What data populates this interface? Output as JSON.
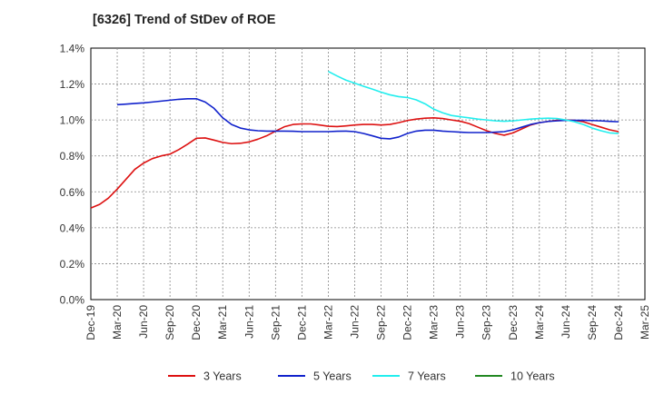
{
  "chart_data": {
    "type": "line",
    "title": "[6326]  Trend of StDev of ROE",
    "ylim": [
      0,
      1.4
    ],
    "y_ticks": [
      "0.0%",
      "0.2%",
      "0.4%",
      "0.6%",
      "0.8%",
      "1.0%",
      "1.2%",
      "1.4%"
    ],
    "x_ticks": [
      "Dec-19",
      "Mar-20",
      "Jun-20",
      "Sep-20",
      "Dec-20",
      "Mar-21",
      "Jun-21",
      "Sep-21",
      "Dec-21",
      "Mar-22",
      "Jun-22",
      "Sep-22",
      "Dec-22",
      "Mar-23",
      "Jun-23",
      "Sep-23",
      "Dec-23",
      "Mar-24",
      "Jun-24",
      "Sep-24",
      "Dec-24",
      "Mar-25"
    ],
    "grid": true,
    "legend_position": "bottom",
    "series": [
      {
        "name": "3 Years",
        "color": "#dd1111",
        "points": [
          [
            "Dec-19",
            0.51
          ],
          [
            "Jan-20",
            0.53
          ],
          [
            "Feb-20",
            0.565
          ],
          [
            "Mar-20",
            0.615
          ],
          [
            "Apr-20",
            0.67
          ],
          [
            "May-20",
            0.725
          ],
          [
            "Jun-20",
            0.76
          ],
          [
            "Jul-20",
            0.785
          ],
          [
            "Aug-20",
            0.8
          ],
          [
            "Sep-20",
            0.81
          ],
          [
            "Oct-20",
            0.835
          ],
          [
            "Nov-20",
            0.865
          ],
          [
            "Dec-20",
            0.898
          ],
          [
            "Jan-21",
            0.9
          ],
          [
            "Feb-21",
            0.888
          ],
          [
            "Mar-21",
            0.875
          ],
          [
            "Apr-21",
            0.868
          ],
          [
            "May-21",
            0.87
          ],
          [
            "Jun-21",
            0.878
          ],
          [
            "Jul-21",
            0.893
          ],
          [
            "Aug-21",
            0.912
          ],
          [
            "Sep-21",
            0.938
          ],
          [
            "Oct-21",
            0.962
          ],
          [
            "Nov-21",
            0.975
          ],
          [
            "Dec-21",
            0.978
          ],
          [
            "Jan-22",
            0.978
          ],
          [
            "Feb-22",
            0.972
          ],
          [
            "Mar-22",
            0.965
          ],
          [
            "Apr-22",
            0.963
          ],
          [
            "May-22",
            0.967
          ],
          [
            "Jun-22",
            0.972
          ],
          [
            "Jul-22",
            0.975
          ],
          [
            "Aug-22",
            0.975
          ],
          [
            "Sep-22",
            0.972
          ],
          [
            "Oct-22",
            0.975
          ],
          [
            "Nov-22",
            0.985
          ],
          [
            "Dec-22",
            0.997
          ],
          [
            "Jan-23",
            1.005
          ],
          [
            "Feb-23",
            1.01
          ],
          [
            "Mar-23",
            1.012
          ],
          [
            "Apr-23",
            1.008
          ],
          [
            "May-23",
            1.0
          ],
          [
            "Jun-23",
            0.993
          ],
          [
            "Jul-23",
            0.98
          ],
          [
            "Aug-23",
            0.96
          ],
          [
            "Sep-23",
            0.94
          ],
          [
            "Oct-23",
            0.925
          ],
          [
            "Nov-23",
            0.915
          ],
          [
            "Dec-23",
            0.928
          ],
          [
            "Jan-24",
            0.95
          ],
          [
            "Feb-24",
            0.972
          ],
          [
            "Mar-24",
            0.985
          ],
          [
            "Apr-24",
            0.992
          ],
          [
            "May-24",
            0.998
          ],
          [
            "Jun-24",
            1.0
          ],
          [
            "Jul-24",
            0.998
          ],
          [
            "Aug-24",
            0.99
          ],
          [
            "Sep-24",
            0.975
          ],
          [
            "Oct-24",
            0.96
          ],
          [
            "Nov-24",
            0.945
          ],
          [
            "Dec-24",
            0.935
          ]
        ]
      },
      {
        "name": "5 Years",
        "color": "#1122cc",
        "points": [
          [
            "Mar-20",
            1.085
          ],
          [
            "Apr-20",
            1.088
          ],
          [
            "May-20",
            1.092
          ],
          [
            "Jun-20",
            1.095
          ],
          [
            "Jul-20",
            1.1
          ],
          [
            "Aug-20",
            1.105
          ],
          [
            "Sep-20",
            1.11
          ],
          [
            "Oct-20",
            1.115
          ],
          [
            "Nov-20",
            1.118
          ],
          [
            "Dec-20",
            1.118
          ],
          [
            "Jan-21",
            1.1
          ],
          [
            "Feb-21",
            1.065
          ],
          [
            "Mar-21",
            1.012
          ],
          [
            "Apr-21",
            0.975
          ],
          [
            "May-21",
            0.955
          ],
          [
            "Jun-21",
            0.945
          ],
          [
            "Jul-21",
            0.94
          ],
          [
            "Aug-21",
            0.938
          ],
          [
            "Sep-21",
            0.938
          ],
          [
            "Oct-21",
            0.938
          ],
          [
            "Nov-21",
            0.937
          ],
          [
            "Dec-21",
            0.935
          ],
          [
            "Jan-22",
            0.935
          ],
          [
            "Feb-22",
            0.935
          ],
          [
            "Mar-22",
            0.935
          ],
          [
            "Apr-22",
            0.937
          ],
          [
            "May-22",
            0.938
          ],
          [
            "Jun-22",
            0.935
          ],
          [
            "Jul-22",
            0.925
          ],
          [
            "Aug-22",
            0.912
          ],
          [
            "Sep-22",
            0.898
          ],
          [
            "Oct-22",
            0.895
          ],
          [
            "Nov-22",
            0.905
          ],
          [
            "Dec-22",
            0.925
          ],
          [
            "Jan-23",
            0.938
          ],
          [
            "Feb-23",
            0.943
          ],
          [
            "Mar-23",
            0.943
          ],
          [
            "Apr-23",
            0.938
          ],
          [
            "May-23",
            0.935
          ],
          [
            "Jun-23",
            0.932
          ],
          [
            "Jul-23",
            0.93
          ],
          [
            "Aug-23",
            0.93
          ],
          [
            "Sep-23",
            0.93
          ],
          [
            "Oct-23",
            0.932
          ],
          [
            "Nov-23",
            0.935
          ],
          [
            "Dec-23",
            0.945
          ],
          [
            "Jan-24",
            0.96
          ],
          [
            "Feb-24",
            0.975
          ],
          [
            "Mar-24",
            0.985
          ],
          [
            "Apr-24",
            0.992
          ],
          [
            "May-24",
            0.995
          ],
          [
            "Jun-24",
            0.998
          ],
          [
            "Jul-24",
            0.998
          ],
          [
            "Aug-24",
            0.998
          ],
          [
            "Sep-24",
            0.997
          ],
          [
            "Oct-24",
            0.995
          ],
          [
            "Nov-24",
            0.992
          ],
          [
            "Dec-24",
            0.99
          ]
        ]
      },
      {
        "name": "7 Years",
        "color": "#22eeee",
        "points": [
          [
            "Mar-22",
            1.27
          ],
          [
            "Apr-22",
            1.245
          ],
          [
            "May-22",
            1.222
          ],
          [
            "Jun-22",
            1.205
          ],
          [
            "Jul-22",
            1.188
          ],
          [
            "Aug-22",
            1.172
          ],
          [
            "Sep-22",
            1.155
          ],
          [
            "Oct-22",
            1.14
          ],
          [
            "Nov-22",
            1.13
          ],
          [
            "Dec-22",
            1.125
          ],
          [
            "Jan-23",
            1.112
          ],
          [
            "Feb-23",
            1.09
          ],
          [
            "Mar-23",
            1.06
          ],
          [
            "Apr-23",
            1.04
          ],
          [
            "May-23",
            1.025
          ],
          [
            "Jun-23",
            1.018
          ],
          [
            "Jul-23",
            1.012
          ],
          [
            "Aug-23",
            1.005
          ],
          [
            "Sep-23",
            1.0
          ],
          [
            "Oct-23",
            0.995
          ],
          [
            "Nov-23",
            0.993
          ],
          [
            "Dec-23",
            0.995
          ],
          [
            "Jan-24",
            1.0
          ],
          [
            "Feb-24",
            1.005
          ],
          [
            "Mar-24",
            1.008
          ],
          [
            "Apr-24",
            1.01
          ],
          [
            "May-24",
            1.008
          ],
          [
            "Jun-24",
            1.0
          ],
          [
            "Jul-24",
            0.99
          ],
          [
            "Aug-24",
            0.975
          ],
          [
            "Sep-24",
            0.955
          ],
          [
            "Oct-24",
            0.94
          ],
          [
            "Nov-24",
            0.928
          ],
          [
            "Dec-24",
            0.925
          ]
        ]
      },
      {
        "name": "10 Years",
        "color": "#228822",
        "points": []
      }
    ]
  }
}
